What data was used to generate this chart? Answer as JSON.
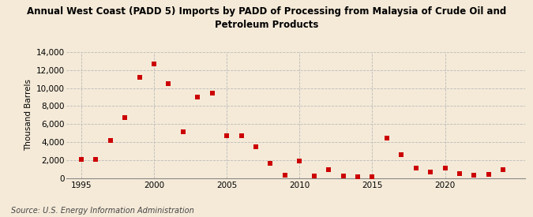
{
  "title": "Annual West Coast (PADD 5) Imports by PADD of Processing from Malaysia of Crude Oil and\nPetroleum Products",
  "ylabel": "Thousand Barrels",
  "source": "Source: U.S. Energy Information Administration",
  "background_color": "#f5ead8",
  "plot_bg_color": "#f5ead8",
  "marker_color": "#cc0000",
  "grid_color": "#bbbbbb",
  "xlim": [
    1994.0,
    2025.5
  ],
  "ylim": [
    0,
    14000
  ],
  "yticks": [
    0,
    2000,
    4000,
    6000,
    8000,
    10000,
    12000,
    14000
  ],
  "xticks": [
    1995,
    2000,
    2005,
    2010,
    2015,
    2020
  ],
  "data": {
    "years": [
      1995,
      1996,
      1997,
      1998,
      1999,
      2000,
      2001,
      2002,
      2003,
      2004,
      2005,
      2006,
      2007,
      2008,
      2009,
      2010,
      2011,
      2012,
      2013,
      2014,
      2015,
      2016,
      2017,
      2018,
      2019,
      2020,
      2021,
      2022,
      2023,
      2024
    ],
    "values": [
      2100,
      2100,
      4200,
      6700,
      11200,
      12700,
      10500,
      5100,
      9000,
      9400,
      4700,
      4700,
      3500,
      1600,
      300,
      1900,
      200,
      900,
      200,
      100,
      100,
      4400,
      2600,
      1100,
      700,
      1100,
      500,
      300,
      400,
      900
    ]
  }
}
